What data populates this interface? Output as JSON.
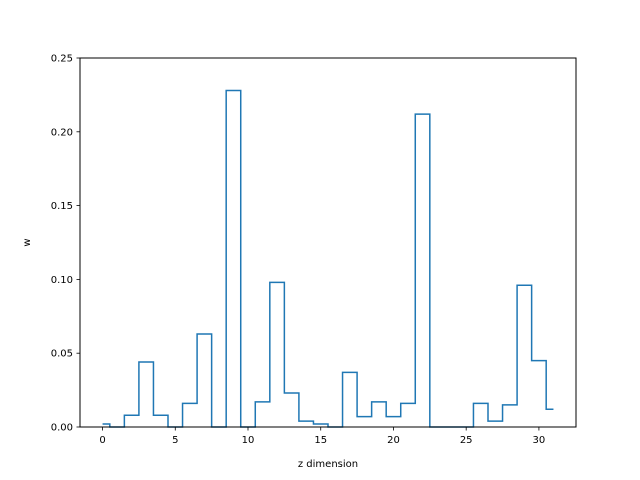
{
  "chart_data": {
    "type": "line",
    "drawstyle": "steps-mid",
    "title": "",
    "xlabel": "z dimension",
    "ylabel": "w",
    "xlim": [
      -1.55,
      32.55
    ],
    "ylim": [
      0,
      0.25
    ],
    "xticks": [
      0,
      5,
      10,
      15,
      20,
      25,
      30
    ],
    "xtick_labels": [
      "0",
      "5",
      "10",
      "15",
      "20",
      "25",
      "30"
    ],
    "yticks": [
      0.0,
      0.05,
      0.1,
      0.15,
      0.2,
      0.25
    ],
    "ytick_labels": [
      "0.00",
      "0.05",
      "0.10",
      "0.15",
      "0.20",
      "0.25"
    ],
    "grid": false,
    "legend": "none",
    "line_color": "#1f77b4",
    "series": [
      {
        "x": [
          0,
          1,
          2,
          3,
          4,
          5,
          6,
          7,
          8,
          9,
          10,
          11,
          12,
          13,
          14,
          15,
          16,
          17,
          18,
          19,
          20,
          21,
          22,
          23,
          24,
          25,
          26,
          27,
          28,
          29,
          30,
          31
        ],
        "values": [
          0.002,
          0.0,
          0.008,
          0.044,
          0.008,
          0.0,
          0.016,
          0.063,
          0.0,
          0.228,
          0.0,
          0.017,
          0.098,
          0.023,
          0.004,
          0.002,
          0.0,
          0.037,
          0.007,
          0.017,
          0.007,
          0.016,
          0.212,
          0.0,
          0.0,
          0.0,
          0.016,
          0.004,
          0.015,
          0.096,
          0.045,
          0.012
        ]
      }
    ]
  }
}
